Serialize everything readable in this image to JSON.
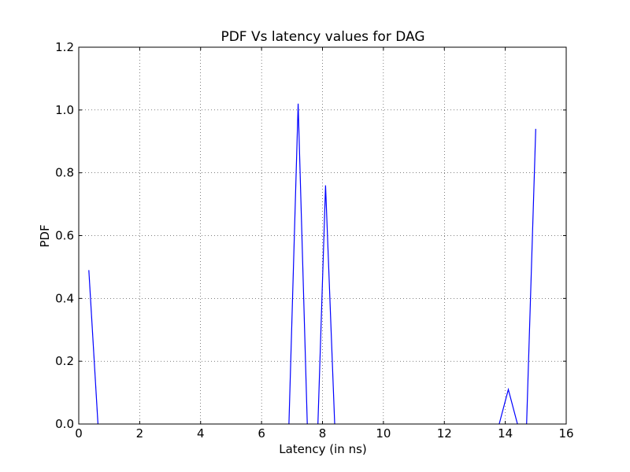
{
  "chart_data": {
    "type": "line",
    "title": "PDF Vs latency values for DAG",
    "xlabel": "Latency (in ns)",
    "ylabel": "PDF",
    "xlim": [
      0,
      16
    ],
    "ylim": [
      0,
      1.2
    ],
    "xticks": [
      "0",
      "2",
      "4",
      "6",
      "8",
      "10",
      "12",
      "14",
      "16"
    ],
    "yticks": [
      "0.0",
      "0.2",
      "0.4",
      "0.6",
      "0.8",
      "1.0",
      "1.2"
    ],
    "grid": true,
    "color": "#0000ff",
    "series": [
      {
        "segments": [
          [
            [
              0.33,
              0.49
            ],
            [
              0.63,
              0.0
            ]
          ],
          [
            [
              6.9,
              0.0
            ],
            [
              7.2,
              1.02
            ],
            [
              7.5,
              0.0
            ]
          ],
          [
            [
              7.85,
              0.0
            ],
            [
              8.1,
              0.76
            ],
            [
              8.4,
              0.0
            ]
          ],
          [
            [
              13.8,
              0.0
            ],
            [
              14.1,
              0.11
            ],
            [
              14.4,
              0.0
            ]
          ],
          [
            [
              14.7,
              0.0
            ],
            [
              15.0,
              0.94
            ]
          ]
        ]
      }
    ]
  }
}
